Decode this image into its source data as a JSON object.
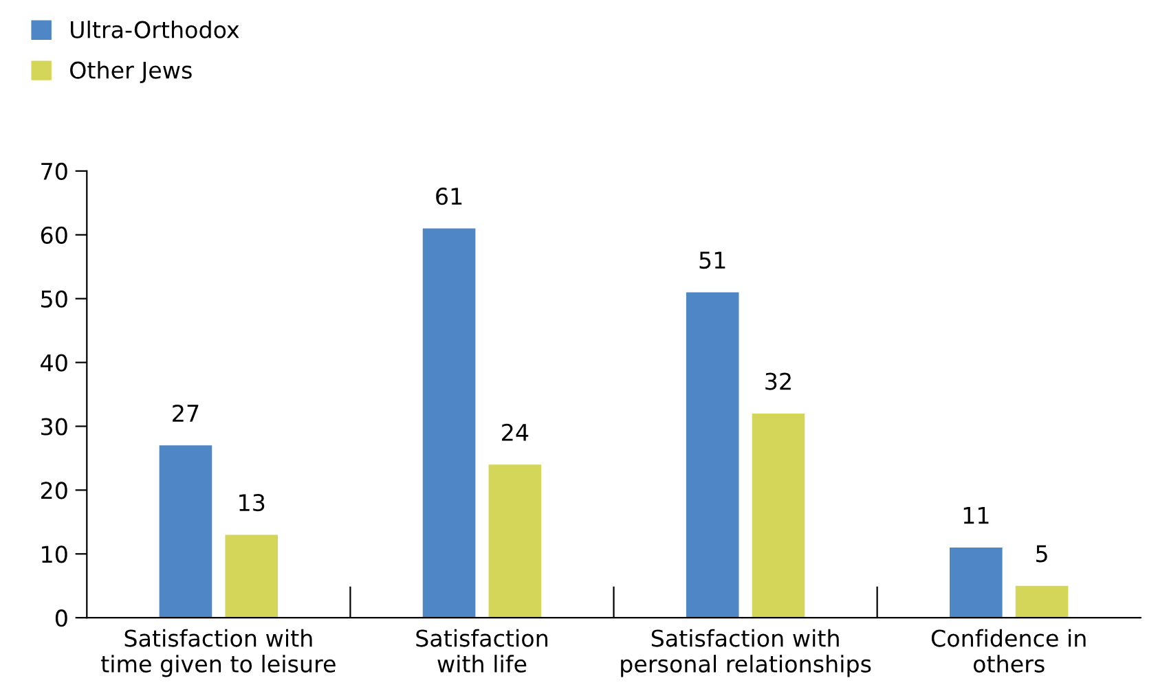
{
  "chart_data": {
    "type": "bar",
    "categories": [
      "Satisfaction with\ntime given to leisure",
      "Satisfaction\nwith life",
      "Satisfaction with\npersonal relationships",
      "Confidence in\nothers"
    ],
    "series": [
      {
        "name": "Ultra-Orthodox",
        "color": "#4f86c6",
        "values": [
          27,
          61,
          51,
          11
        ]
      },
      {
        "name": "Other Jews",
        "color": "#d4d65a",
        "values": [
          13,
          24,
          32,
          5
        ]
      }
    ],
    "ylim": [
      0,
      70
    ],
    "yticks": [
      0,
      10,
      20,
      30,
      40,
      50,
      60,
      70
    ],
    "data_labels": true,
    "grid": false,
    "legend": "top left"
  }
}
